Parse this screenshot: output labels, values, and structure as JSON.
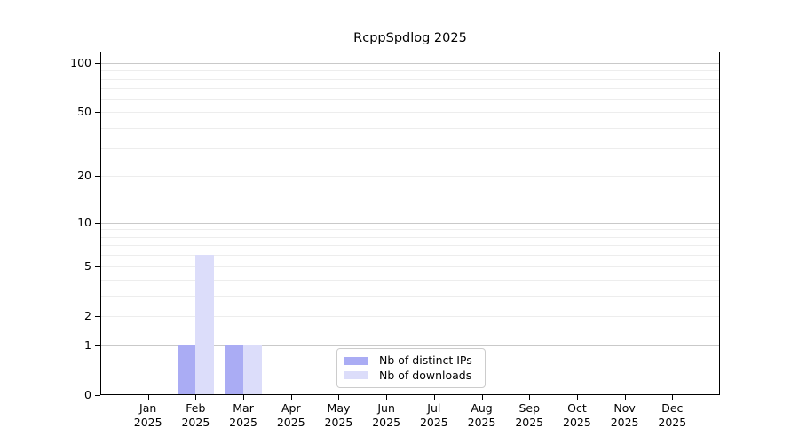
{
  "chart_data": {
    "type": "bar",
    "title": "RcppSpdlog 2025",
    "xlabel": "",
    "ylabel": "",
    "categories": [
      "Jan",
      "Feb",
      "Mar",
      "Apr",
      "May",
      "Jun",
      "Jul",
      "Aug",
      "Sep",
      "Oct",
      "Nov",
      "Dec"
    ],
    "category_year_subline": "2025",
    "series": [
      {
        "name": "Nb of distinct IPs",
        "color": "#aaacf4",
        "values": [
          0,
          1,
          1,
          0,
          0,
          0,
          0,
          0,
          0,
          0,
          0,
          0
        ]
      },
      {
        "name": "Nb of downloads",
        "color": "#dcddfa",
        "values": [
          0,
          6,
          1,
          0,
          0,
          0,
          0,
          0,
          0,
          0,
          0,
          0
        ]
      }
    ],
    "y_axis": {
      "scale": "log1p",
      "ticks": [
        0,
        1,
        2,
        5,
        10,
        20,
        50,
        100
      ],
      "major_gridlines": [
        1,
        10,
        100
      ],
      "minor_gridlines": [
        2,
        3,
        4,
        5,
        6,
        7,
        8,
        9,
        20,
        30,
        40,
        50,
        60,
        70,
        80,
        90
      ],
      "ylim": [
        0,
        117.4
      ]
    },
    "grid": true,
    "legend": {
      "position": "lower center inside",
      "entries": [
        "Nb of distinct IPs",
        "Nb of downloads"
      ]
    },
    "colors": {
      "axis": "#000000",
      "major_grid": "#c9c9c9",
      "minor_grid": "#ededed",
      "legend_border": "#cccccc",
      "background": "#ffffff"
    }
  }
}
